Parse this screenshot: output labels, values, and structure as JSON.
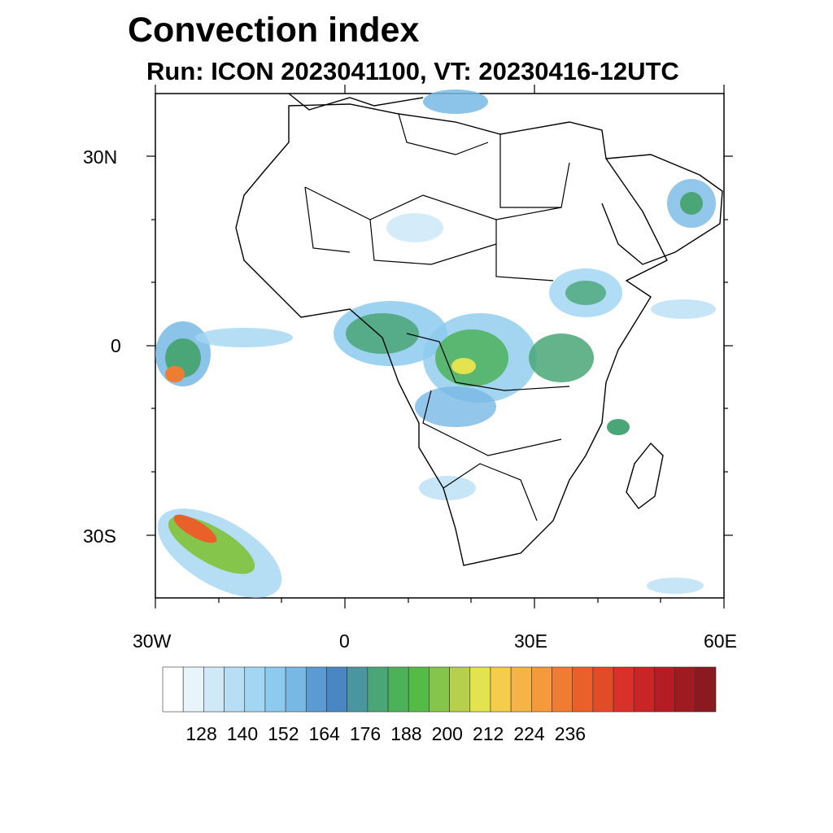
{
  "title": "Convection index",
  "subtitle": "Run: ICON 2023041100,  VT: 20230416-12UTC",
  "axes": {
    "lat_labels": [
      "30N",
      "0",
      "30S"
    ],
    "lon_labels": [
      "30W",
      "0",
      "30E",
      "60E"
    ]
  },
  "colorbar": {
    "labels": [
      "128",
      "140",
      "152",
      "164",
      "176",
      "188",
      "200",
      "212",
      "224",
      "236"
    ],
    "colors": [
      "#ffffff",
      "#e8f4fb",
      "#cfe9f8",
      "#b8def5",
      "#a3d6f3",
      "#8ccaee",
      "#77b8e5",
      "#5b9ad3",
      "#4a87c2",
      "#4a96a0",
      "#4aa677",
      "#4cb25a",
      "#53bb46",
      "#86c54c",
      "#b6d04d",
      "#e3e34f",
      "#f6cc4d",
      "#f6b448",
      "#f59a3c",
      "#ef7c32",
      "#e9602b",
      "#e24b28",
      "#d93027",
      "#c92527",
      "#b51d25",
      "#9e1b22",
      "#8a1a1f"
    ]
  }
}
